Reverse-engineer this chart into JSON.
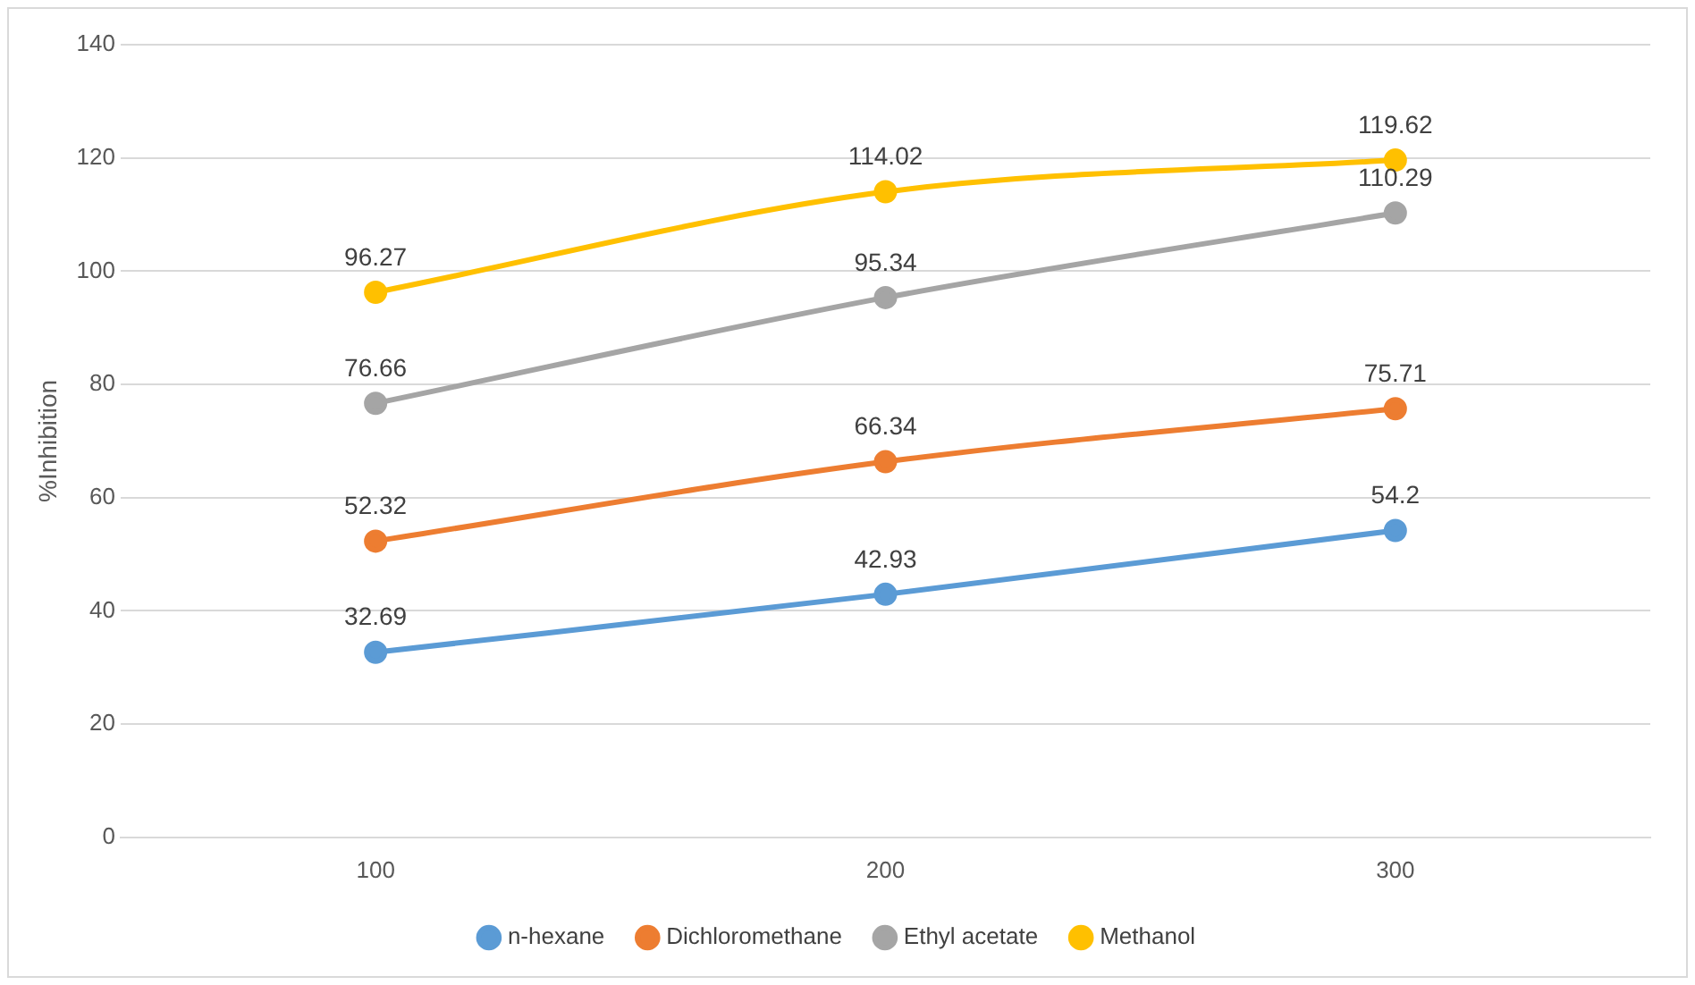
{
  "chart_data": {
    "type": "line",
    "ylabel": "%Inhibition",
    "categories": [
      "100",
      "200",
      "300"
    ],
    "ylim": [
      0,
      140
    ],
    "yticks": [
      0,
      20,
      40,
      60,
      80,
      100,
      120,
      140
    ],
    "grid": "y",
    "legend": "bottom",
    "marker": "circle",
    "line_style": "solid",
    "data_labels": true,
    "series": [
      {
        "name": "n-hexane",
        "color": "#5b9bd5",
        "values": [
          32.69,
          42.93,
          54.2
        ]
      },
      {
        "name": "Dichloromethane",
        "color": "#ed7d31",
        "values": [
          52.32,
          66.34,
          75.71
        ]
      },
      {
        "name": "Ethyl acetate",
        "color": "#a5a5a5",
        "values": [
          76.66,
          95.34,
          110.29
        ]
      },
      {
        "name": "Methanol",
        "color": "#ffc000",
        "values": [
          96.27,
          114.02,
          119.62
        ]
      }
    ]
  }
}
